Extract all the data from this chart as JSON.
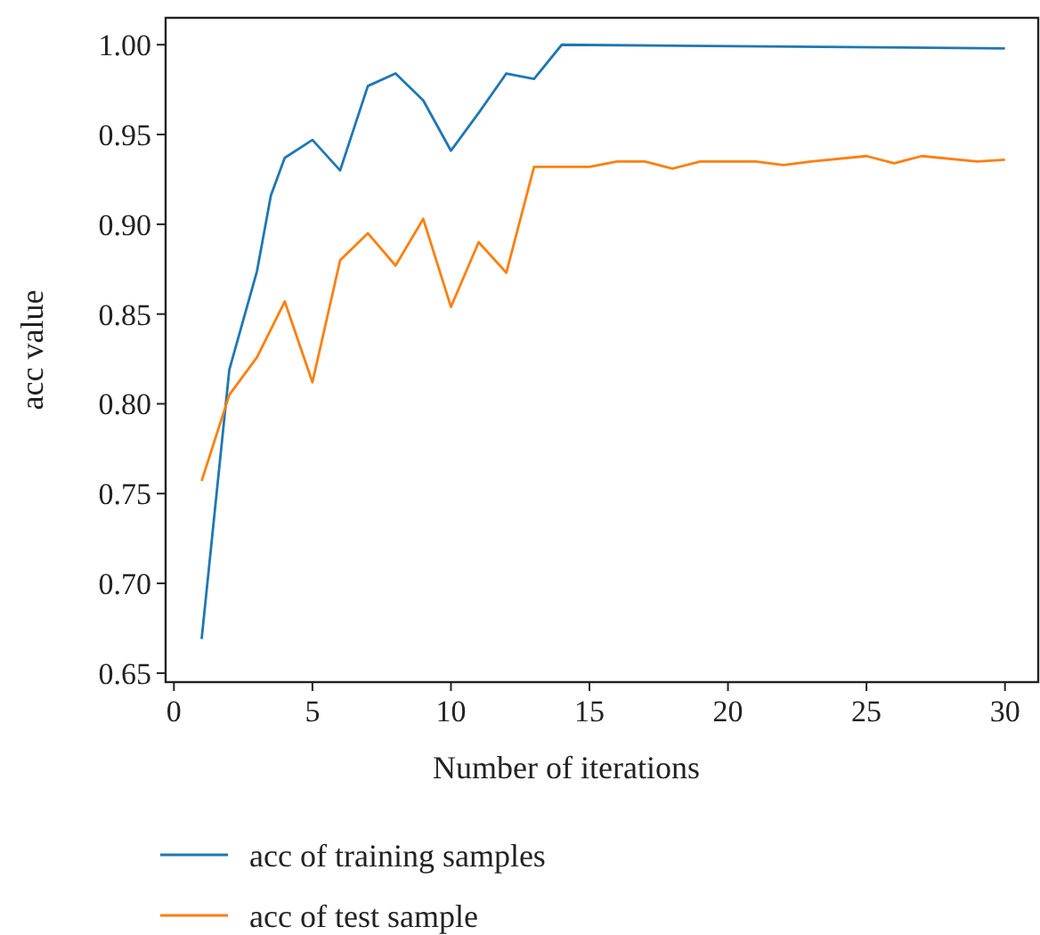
{
  "chart_data": {
    "type": "line",
    "xlabel": "Number of iterations",
    "ylabel": "acc value",
    "xlim": [
      -0.3,
      31.2
    ],
    "xticks": [
      0,
      5,
      10,
      15,
      20,
      25,
      30
    ],
    "ylim": [
      0.645,
      1.015
    ],
    "yticks": [
      {
        "value": 0.65,
        "label": "0.65"
      },
      {
        "value": 0.7,
        "label": "0.70"
      },
      {
        "value": 0.75,
        "label": "0.75"
      },
      {
        "value": 0.8,
        "label": "0.80"
      },
      {
        "value": 0.85,
        "label": "0.85"
      },
      {
        "value": 0.9,
        "label": "0.90"
      },
      {
        "value": 0.95,
        "label": "0.95"
      },
      {
        "value": 1,
        "label": "1.00"
      }
    ],
    "grid": false,
    "legend": "bottom",
    "marker": "none",
    "line_style": "solid",
    "series": [
      {
        "name": "acc of training samples",
        "color": "#1f77b4",
        "x": [
          1,
          2,
          3,
          3.5,
          4,
          5,
          6,
          7,
          8,
          9,
          10,
          11,
          12,
          13,
          14,
          30
        ],
        "values": [
          0.669,
          0.819,
          0.874,
          0.916,
          0.937,
          0.947,
          0.93,
          0.977,
          0.984,
          0.969,
          0.941,
          0.962,
          0.984,
          0.981,
          1.0,
          0.998
        ]
      },
      {
        "name": "acc of test sample",
        "color": "#ff7f0e",
        "x": [
          1,
          2,
          3,
          4,
          5,
          6,
          7,
          8,
          9,
          10,
          11,
          12,
          13,
          15,
          16,
          17,
          18,
          19,
          21,
          22,
          23,
          25,
          26,
          27,
          29,
          30
        ],
        "values": [
          0.757,
          0.805,
          0.826,
          0.857,
          0.812,
          0.88,
          0.895,
          0.877,
          0.903,
          0.854,
          0.89,
          0.873,
          0.932,
          0.932,
          0.935,
          0.935,
          0.931,
          0.935,
          0.935,
          0.933,
          0.935,
          0.938,
          0.934,
          0.938,
          0.935,
          0.936
        ]
      }
    ]
  }
}
